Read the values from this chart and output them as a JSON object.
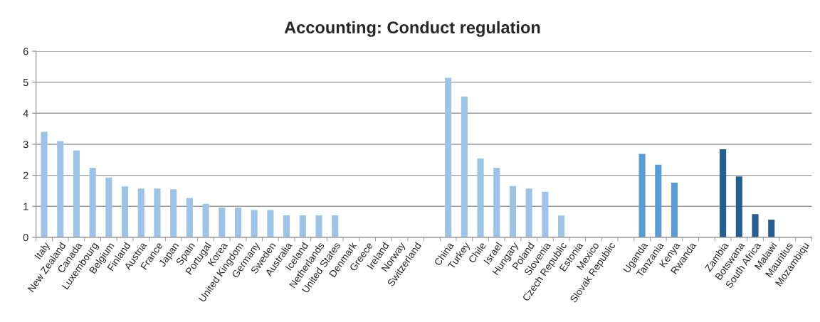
{
  "chart_data": {
    "type": "bar",
    "title": "Accounting: Conduct regulation",
    "categories": [
      "Italy",
      "New Zealand",
      "Canada",
      "Luxembourg",
      "Belgium",
      "Finland",
      "Austria",
      "France",
      "Japan",
      "Spain",
      "Portugal",
      "Korea",
      "United Kingdom",
      "Germany",
      "Sweden",
      "Australia",
      "Iceland",
      "Netherlands",
      "United States",
      "Denmark",
      "Greece",
      "Ireland",
      "Norway",
      "Switzerland",
      null,
      "China",
      "Turkey",
      "Chile",
      "Israel",
      "Hungary",
      "Poland",
      "Slovenia",
      "Czech Republic",
      "Estonia",
      "Mexico",
      "Slovak Republic",
      null,
      "Uganda",
      "Tanzania",
      "Kenya",
      "Rwanda",
      null,
      "Zambia",
      "Botswana",
      "South Africa",
      "Malawi",
      "Mauritius",
      "Mozambiqu"
    ],
    "values": [
      3.4,
      3.1,
      2.8,
      2.24,
      1.93,
      1.64,
      1.57,
      1.57,
      1.55,
      1.27,
      1.08,
      0.96,
      0.96,
      0.88,
      0.88,
      0.71,
      0.71,
      0.71,
      0.71,
      null,
      null,
      null,
      null,
      null,
      null,
      5.14,
      4.54,
      2.54,
      2.24,
      1.65,
      1.57,
      1.47,
      0.7,
      null,
      null,
      null,
      null,
      2.69,
      2.34,
      1.76,
      null,
      null,
      2.84,
      1.96,
      0.75,
      0.57,
      null,
      null
    ],
    "colors": [
      "#9dc3e6",
      "#9dc3e6",
      "#9dc3e6",
      "#9dc3e6",
      "#9dc3e6",
      "#9dc3e6",
      "#9dc3e6",
      "#9dc3e6",
      "#9dc3e6",
      "#9dc3e6",
      "#9dc3e6",
      "#9dc3e6",
      "#9dc3e6",
      "#9dc3e6",
      "#9dc3e6",
      "#9dc3e6",
      "#9dc3e6",
      "#9dc3e6",
      "#9dc3e6",
      "#9dc3e6",
      "#9dc3e6",
      "#9dc3e6",
      "#9dc3e6",
      "#9dc3e6",
      "#9dc3e6",
      "#9dc3e6",
      "#9dc3e6",
      "#9dc3e6",
      "#9dc3e6",
      "#9dc3e6",
      "#9dc3e6",
      "#9dc3e6",
      "#9dc3e6",
      "#9dc3e6",
      "#9dc3e6",
      "#9dc3e6",
      "#5b9bd5",
      "#5b9bd5",
      "#5b9bd5",
      "#5b9bd5",
      "#5b9bd5",
      "#255e91",
      "#255e91",
      "#255e91",
      "#255e91",
      "#255e91",
      "#255e91",
      "#255e91"
    ],
    "ylim": [
      0,
      6
    ],
    "yticks": [
      0,
      1,
      2,
      3,
      4,
      5,
      6
    ],
    "grid": "y"
  }
}
